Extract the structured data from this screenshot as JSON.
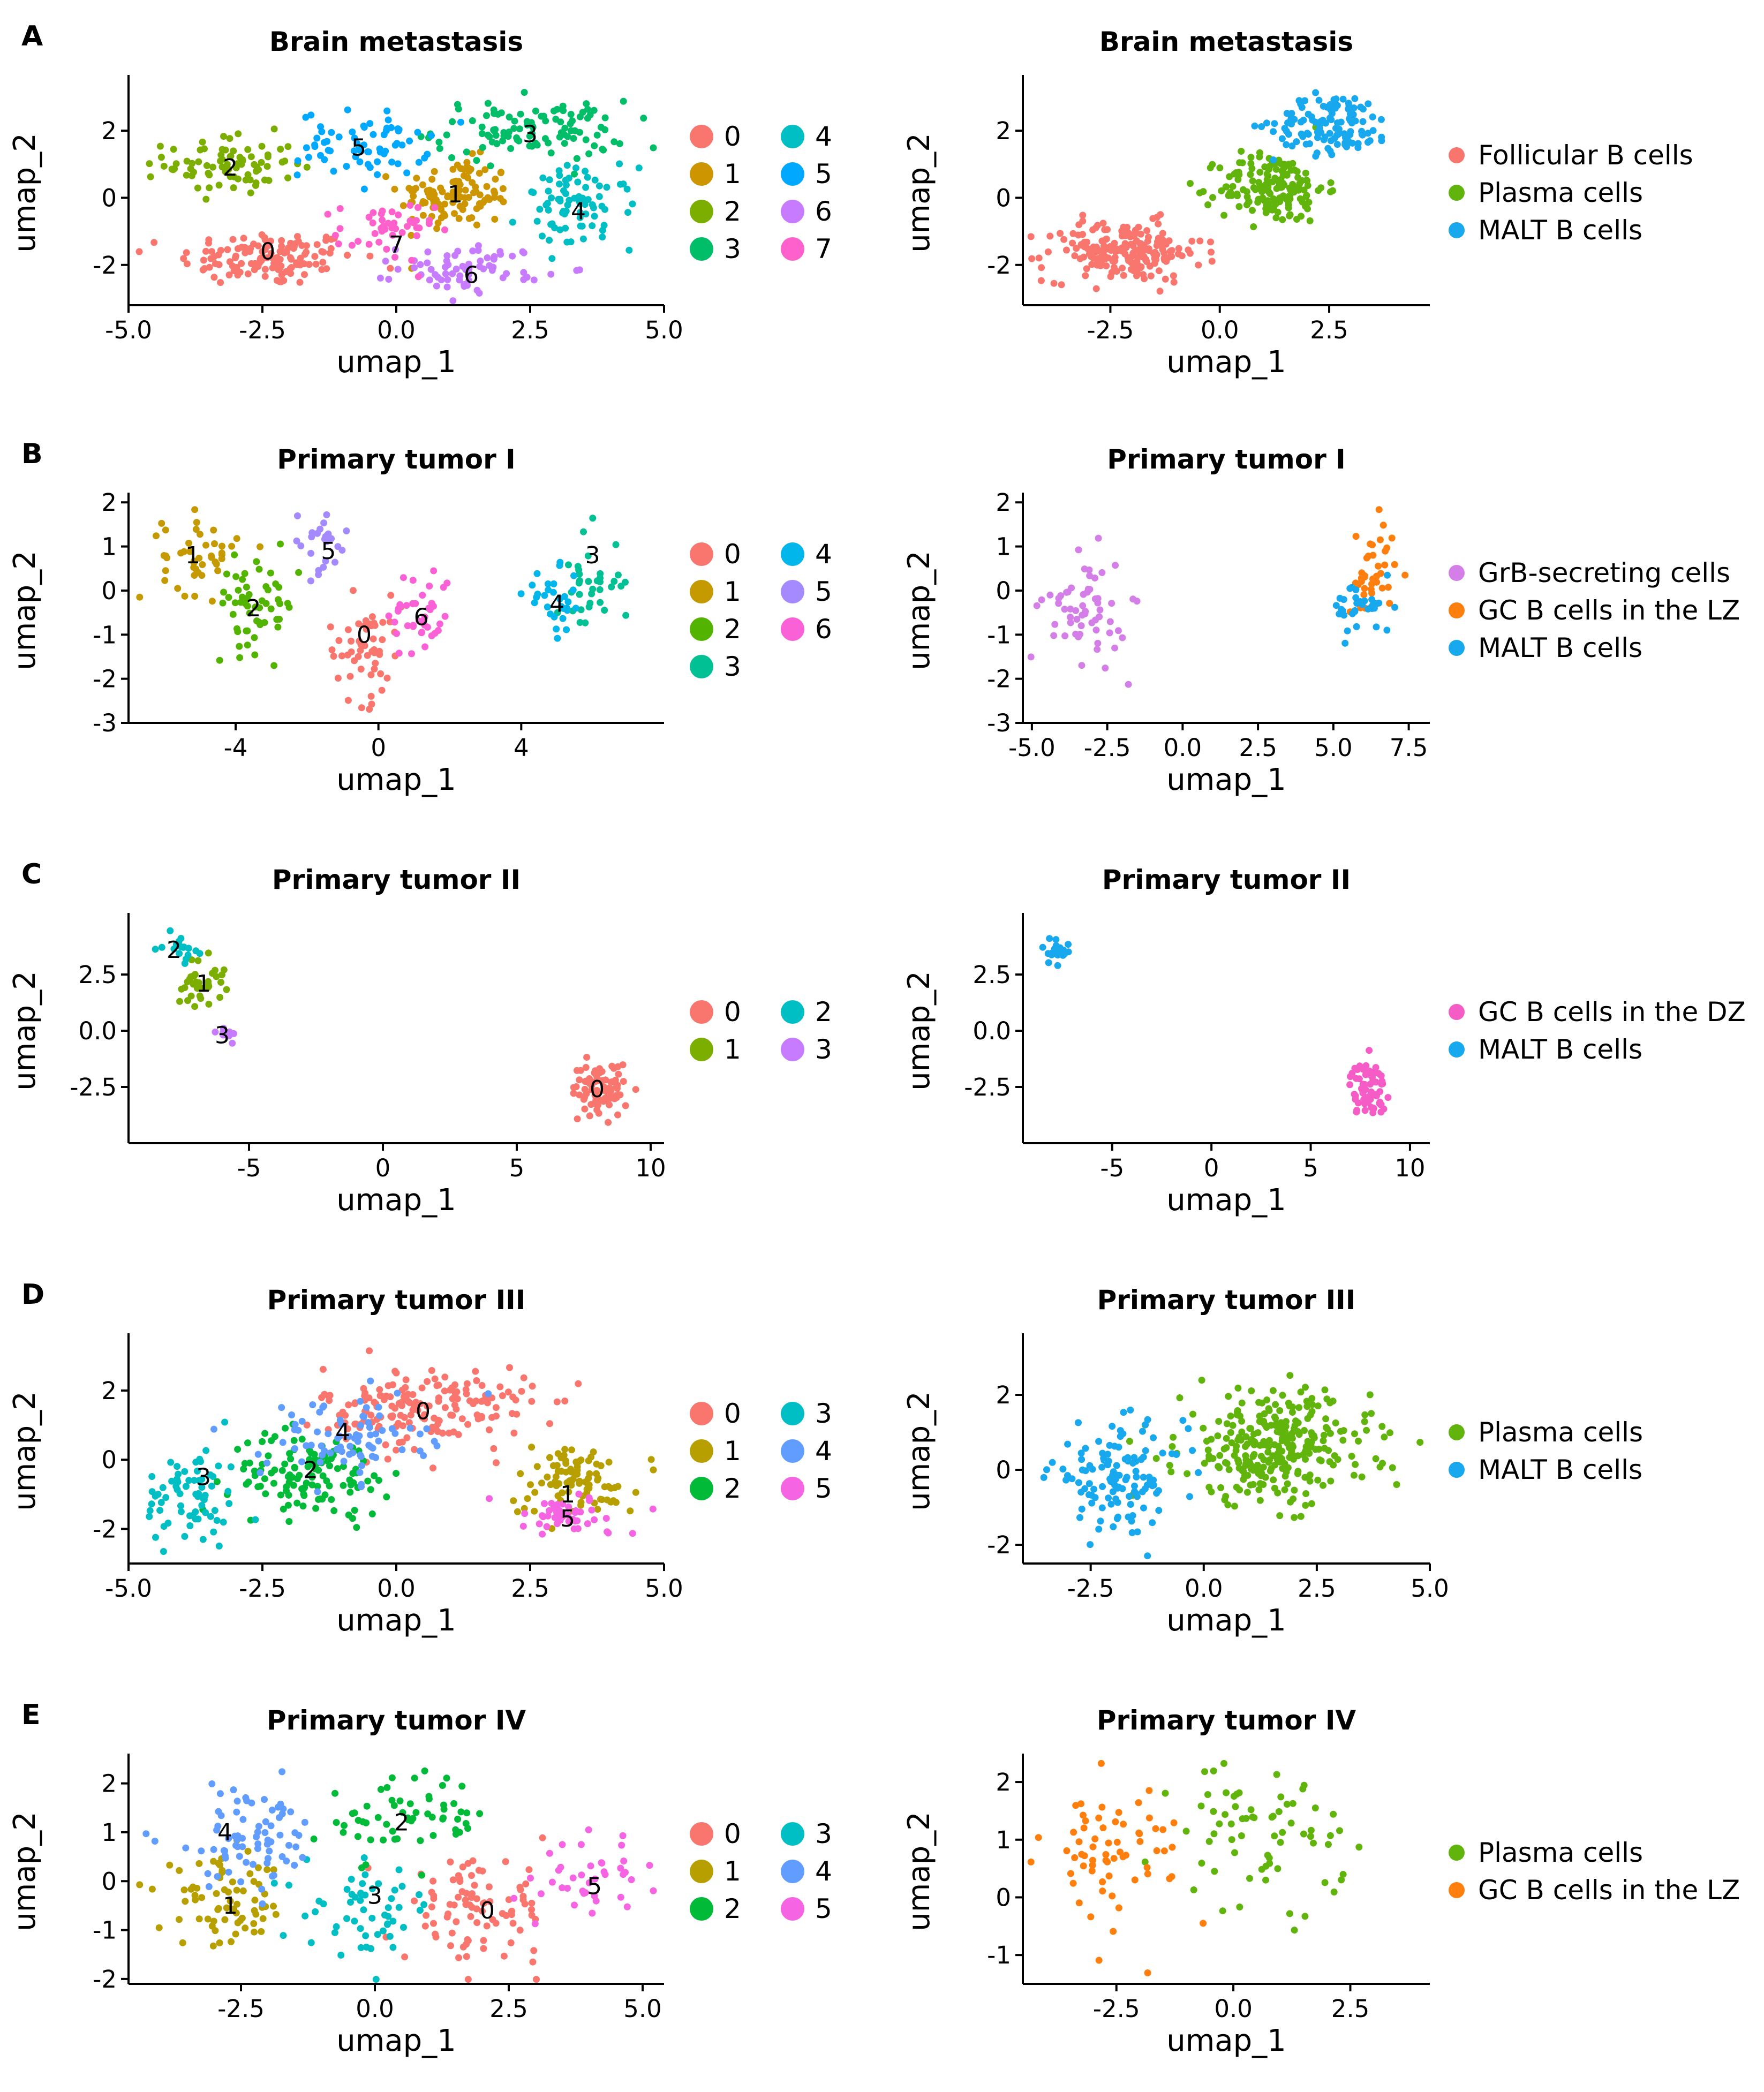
{
  "figure": {
    "rows": [
      {
        "letter": "A",
        "left_title": "Brain metastasis",
        "right_title": "Brain metastasis"
      },
      {
        "letter": "B",
        "left_title": "Primary tumor I",
        "right_title": "Primary tumor I"
      },
      {
        "letter": "C",
        "left_title": "Primary tumor II",
        "right_title": "Primary tumor II"
      },
      {
        "letter": "D",
        "left_title": "Primary tumor III",
        "right_title": "Primary tumor III"
      },
      {
        "letter": "E",
        "left_title": "Primary tumor IV",
        "right_title": "Primary tumor IV"
      }
    ],
    "xlabel": "umap_1",
    "ylabel": "umap_2"
  },
  "colors": {
    "cluster8": [
      "#F8766D",
      "#CD9600",
      "#7CAE00",
      "#00BE67",
      "#00BFC4",
      "#00A9FF",
      "#C77CFF",
      "#FF61CC"
    ],
    "cluster7": [
      "#F8766D",
      "#C49A00",
      "#53B400",
      "#00C094",
      "#00B6EB",
      "#A58AFF",
      "#FB61D7"
    ],
    "cluster4": [
      "#F8766D",
      "#7CAE00",
      "#00BFC4",
      "#C77CFF"
    ],
    "cluster6": [
      "#F8766D",
      "#B79F00",
      "#00BA38",
      "#00BFC4",
      "#619CFF",
      "#F564E3"
    ],
    "follicular": "#F8766D",
    "plasma": "#61B40C",
    "malt": "#17A8EE",
    "grb": "#D47FE8",
    "gclz": "#FF7F0E",
    "gcdz": "#F55CC6"
  },
  "chart_data": [
    {
      "id": "A-left",
      "type": "scatter",
      "title": "Brain metastasis",
      "xlabel": "umap_1",
      "ylabel": "umap_2",
      "xlim": [
        -5,
        5
      ],
      "ylim": [
        -3.2,
        3.5
      ],
      "xticks": [
        "-5.0",
        "-2.5",
        "0.0",
        "2.5",
        "5.0"
      ],
      "yticks": [
        "-2",
        "0",
        "2"
      ],
      "legend_title": "",
      "legend_layout": "two-column",
      "series": [
        {
          "name": "0",
          "color_key": "cluster8.0",
          "cx": -2.4,
          "cy": -1.8,
          "sx": 1.1,
          "sy": 0.55,
          "n": 130
        },
        {
          "name": "1",
          "color_key": "cluster8.1",
          "cx": 1.1,
          "cy": 0.1,
          "sx": 0.7,
          "sy": 0.7,
          "n": 110
        },
        {
          "name": "2",
          "color_key": "cluster8.2",
          "cx": -3.1,
          "cy": 1.0,
          "sx": 0.8,
          "sy": 0.6,
          "n": 80
        },
        {
          "name": "3",
          "color_key": "cluster8.3",
          "cx": 2.5,
          "cy": 2.0,
          "sx": 1.2,
          "sy": 0.6,
          "n": 110
        },
        {
          "name": "4",
          "color_key": "cluster8.4",
          "cx": 3.4,
          "cy": -0.3,
          "sx": 0.7,
          "sy": 0.8,
          "n": 80
        },
        {
          "name": "5",
          "color_key": "cluster8.5",
          "cx": -0.6,
          "cy": 1.6,
          "sx": 0.8,
          "sy": 0.65,
          "n": 70
        },
        {
          "name": "6",
          "color_key": "cluster8.6",
          "cx": 1.4,
          "cy": -2.1,
          "sx": 0.9,
          "sy": 0.45,
          "n": 70
        },
        {
          "name": "7",
          "color_key": "cluster8.7",
          "cx": -0.2,
          "cy": -1.0,
          "sx": 0.6,
          "sy": 0.6,
          "n": 45
        }
      ],
      "cluster_labels": [
        {
          "text": "0",
          "x": -2.4,
          "y": -1.6
        },
        {
          "text": "1",
          "x": 1.1,
          "y": 0.1
        },
        {
          "text": "2",
          "x": -3.1,
          "y": 0.9
        },
        {
          "text": "3",
          "x": 2.5,
          "y": 1.9
        },
        {
          "text": "4",
          "x": 3.4,
          "y": -0.4
        },
        {
          "text": "5",
          "x": -0.7,
          "y": 1.5
        },
        {
          "text": "6",
          "x": 1.4,
          "y": -2.3
        },
        {
          "text": "7",
          "x": 0.0,
          "y": -1.4
        }
      ]
    },
    {
      "id": "A-right",
      "type": "scatter",
      "title": "Brain metastasis",
      "xlabel": "umap_1",
      "ylabel": "umap_2",
      "xlim": [
        -4.5,
        4.8
      ],
      "ylim": [
        -3.2,
        3.5
      ],
      "xticks": [
        "-2.5",
        "0.0",
        "2.5"
      ],
      "yticks": [
        "-2",
        "0",
        "2"
      ],
      "legend_layout": "one-column",
      "series": [
        {
          "name": "Follicular B cells",
          "color_key": "follicular",
          "cx": -2.2,
          "cy": -1.6,
          "sx": 1.2,
          "sy": 0.6,
          "n": 190
        },
        {
          "name": "Plasma cells",
          "color_key": "plasma",
          "cx": 1.2,
          "cy": 0.3,
          "sx": 0.8,
          "sy": 0.7,
          "n": 170
        },
        {
          "name": "MALT B cells",
          "color_key": "malt",
          "cx": 2.6,
          "cy": 2.2,
          "sx": 0.9,
          "sy": 0.6,
          "n": 120
        }
      ],
      "cluster_labels": []
    },
    {
      "id": "B-left",
      "type": "scatter",
      "title": "Primary tumor I",
      "xlabel": "umap_1",
      "ylabel": "umap_2",
      "xlim": [
        -7,
        8
      ],
      "ylim": [
        -3,
        2.1
      ],
      "xticks": [
        "-4",
        "0",
        "4"
      ],
      "xtick_values": [
        -4,
        0,
        4
      ],
      "yticks": [
        "-3",
        "-2",
        "-1",
        "0",
        "1",
        "2"
      ],
      "legend_layout": "two-column",
      "series": [
        {
          "name": "0",
          "color_key": "cluster7.0",
          "cx": -0.4,
          "cy": -1.3,
          "sx": 0.7,
          "sy": 0.8,
          "n": 55
        },
        {
          "name": "1",
          "color_key": "cluster7.1",
          "cx": -5.0,
          "cy": 0.8,
          "sx": 0.7,
          "sy": 0.6,
          "n": 45
        },
        {
          "name": "2",
          "color_key": "cluster7.2",
          "cx": -3.4,
          "cy": -0.3,
          "sx": 0.8,
          "sy": 0.7,
          "n": 55
        },
        {
          "name": "3",
          "color_key": "cluster7.3",
          "cx": 5.9,
          "cy": 0.2,
          "sx": 0.6,
          "sy": 0.8,
          "n": 35
        },
        {
          "name": "4",
          "color_key": "cluster7.4",
          "cx": 5.0,
          "cy": -0.3,
          "sx": 0.6,
          "sy": 0.5,
          "n": 30
        },
        {
          "name": "5",
          "color_key": "cluster7.5",
          "cx": -1.7,
          "cy": 1.1,
          "sx": 0.6,
          "sy": 0.5,
          "n": 25
        },
        {
          "name": "6",
          "color_key": "cluster7.6",
          "cx": 1.2,
          "cy": -0.5,
          "sx": 0.6,
          "sy": 0.7,
          "n": 40
        }
      ],
      "cluster_labels": [
        {
          "text": "0",
          "x": -0.4,
          "y": -1.0
        },
        {
          "text": "1",
          "x": -5.2,
          "y": 0.8
        },
        {
          "text": "2",
          "x": -3.5,
          "y": -0.4
        },
        {
          "text": "3",
          "x": 6.0,
          "y": 0.8
        },
        {
          "text": "4",
          "x": 5.0,
          "y": -0.3
        },
        {
          "text": "5",
          "x": -1.4,
          "y": 0.9
        },
        {
          "text": "6",
          "x": 1.2,
          "y": -0.6
        }
      ]
    },
    {
      "id": "B-right",
      "type": "scatter",
      "title": "Primary tumor I",
      "xlabel": "umap_1",
      "ylabel": "umap_2",
      "xlim": [
        -5.3,
        8.2
      ],
      "ylim": [
        -3,
        2.1
      ],
      "xticks": [
        "-5.0",
        "-2.5",
        "0.0",
        "2.5",
        "5.0",
        "7.5"
      ],
      "yticks": [
        "-3",
        "-2",
        "-1",
        "0",
        "1",
        "2"
      ],
      "legend_layout": "one-column",
      "series": [
        {
          "name": "GrB-secreting cells",
          "color_key": "grb",
          "cx": -3.2,
          "cy": -0.4,
          "sx": 0.9,
          "sy": 0.8,
          "n": 60
        },
        {
          "name": "GC B cells in the LZ",
          "color_key": "gclz",
          "cx": 6.3,
          "cy": 0.4,
          "sx": 0.5,
          "sy": 0.8,
          "n": 40
        },
        {
          "name": "MALT B cells",
          "color_key": "malt",
          "cx": 6.0,
          "cy": -0.4,
          "sx": 0.7,
          "sy": 0.4,
          "n": 35
        }
      ],
      "cluster_labels": []
    },
    {
      "id": "C-left",
      "type": "scatter",
      "title": "Primary tumor II",
      "xlabel": "umap_1",
      "ylabel": "umap_2",
      "xlim": [
        -9.5,
        10.5
      ],
      "ylim": [
        -5,
        5
      ],
      "xticks": [
        "-5",
        "0",
        "5",
        "10"
      ],
      "yticks": [
        "-2.5",
        "0.0",
        "2.5"
      ],
      "legend_layout": "two-column",
      "series": [
        {
          "name": "0",
          "color_key": "cluster4.0",
          "cx": 8.1,
          "cy": -2.6,
          "sx": 0.7,
          "sy": 0.8,
          "n": 80
        },
        {
          "name": "1",
          "color_key": "cluster4.1",
          "cx": -6.8,
          "cy": 2.2,
          "sx": 0.6,
          "sy": 0.7,
          "n": 35
        },
        {
          "name": "2",
          "color_key": "cluster4.2",
          "cx": -7.6,
          "cy": 3.7,
          "sx": 0.4,
          "sy": 0.4,
          "n": 20
        },
        {
          "name": "3",
          "color_key": "cluster4.3",
          "cx": -5.9,
          "cy": 0.0,
          "sx": 0.25,
          "sy": 0.3,
          "n": 12
        }
      ],
      "cluster_labels": [
        {
          "text": "0",
          "x": 8.0,
          "y": -2.6
        },
        {
          "text": "1",
          "x": -6.7,
          "y": 2.1
        },
        {
          "text": "2",
          "x": -7.8,
          "y": 3.6
        },
        {
          "text": "3",
          "x": -6.0,
          "y": -0.2
        }
      ]
    },
    {
      "id": "C-right",
      "type": "scatter",
      "title": "Primary tumor II",
      "xlabel": "umap_1",
      "ylabel": "umap_2",
      "xlim": [
        -9.5,
        11
      ],
      "ylim": [
        -5,
        5
      ],
      "xticks": [
        "-5",
        "0",
        "5",
        "10"
      ],
      "yticks": [
        "-2.5",
        "0.0",
        "2.5"
      ],
      "legend_layout": "one-column",
      "series": [
        {
          "name": "GC B cells in the DZ",
          "color_key": "gcdz",
          "cx": 7.9,
          "cy": -2.6,
          "sx": 0.6,
          "sy": 0.8,
          "n": 70
        },
        {
          "name": "MALT B cells",
          "color_key": "malt",
          "cx": -7.8,
          "cy": 3.6,
          "sx": 0.5,
          "sy": 0.4,
          "n": 22
        }
      ],
      "cluster_labels": []
    },
    {
      "id": "D-left",
      "type": "scatter",
      "title": "Primary tumor III",
      "xlabel": "umap_1",
      "ylabel": "umap_2",
      "xlim": [
        -5,
        5
      ],
      "ylim": [
        -3,
        3.5
      ],
      "xticks": [
        "-5.0",
        "-2.5",
        "0.0",
        "2.5",
        "5.0"
      ],
      "yticks": [
        "-2",
        "0",
        "2"
      ],
      "legend_layout": "two-column",
      "series": [
        {
          "name": "0",
          "color_key": "cluster6.0",
          "cx": 0.6,
          "cy": 1.5,
          "sx": 1.3,
          "sy": 0.8,
          "n": 180
        },
        {
          "name": "1",
          "color_key": "cluster6.1",
          "cx": 3.3,
          "cy": -0.6,
          "sx": 0.8,
          "sy": 0.7,
          "n": 90
        },
        {
          "name": "2",
          "color_key": "cluster6.2",
          "cx": -1.6,
          "cy": -0.4,
          "sx": 1.0,
          "sy": 0.8,
          "n": 120
        },
        {
          "name": "3",
          "color_key": "cluster6.3",
          "cx": -3.8,
          "cy": -1.1,
          "sx": 0.6,
          "sy": 1.0,
          "n": 70
        },
        {
          "name": "4",
          "color_key": "cluster6.4",
          "cx": -1.0,
          "cy": 0.6,
          "sx": 1.0,
          "sy": 0.8,
          "n": 80
        },
        {
          "name": "5",
          "color_key": "cluster6.5",
          "cx": 3.2,
          "cy": -1.6,
          "sx": 0.9,
          "sy": 0.4,
          "n": 50
        }
      ],
      "cluster_labels": [
        {
          "text": "0",
          "x": 0.5,
          "y": 1.4
        },
        {
          "text": "1",
          "x": 3.2,
          "y": -1.0
        },
        {
          "text": "2",
          "x": -1.6,
          "y": -0.3
        },
        {
          "text": "3",
          "x": -3.6,
          "y": -0.5
        },
        {
          "text": "4",
          "x": -1.0,
          "y": 0.8
        },
        {
          "text": "5",
          "x": 3.2,
          "y": -1.7
        }
      ]
    },
    {
      "id": "D-right",
      "type": "scatter",
      "title": "Primary tumor III",
      "xlabel": "umap_1",
      "ylabel": "umap_2",
      "xlim": [
        -4,
        5
      ],
      "ylim": [
        -2.5,
        3.5
      ],
      "xticks": [
        "-2.5",
        "0.0",
        "2.5",
        "5.0"
      ],
      "yticks": [
        "-2",
        "0",
        "2"
      ],
      "legend_layout": "one-column",
      "series": [
        {
          "name": "Plasma cells",
          "color_key": "plasma",
          "cx": 1.6,
          "cy": 0.6,
          "sx": 1.4,
          "sy": 1.0,
          "n": 300
        },
        {
          "name": "MALT B cells",
          "color_key": "malt",
          "cx": -1.9,
          "cy": -0.2,
          "sx": 1.0,
          "sy": 0.9,
          "n": 120
        }
      ],
      "cluster_labels": []
    },
    {
      "id": "E-left",
      "type": "scatter",
      "title": "Primary tumor IV",
      "xlabel": "umap_1",
      "ylabel": "umap_2",
      "xlim": [
        -4.6,
        5.4
      ],
      "ylim": [
        -2.1,
        2.5
      ],
      "xticks": [
        "-2.5",
        "0.0",
        "2.5",
        "5.0"
      ],
      "yticks": [
        "-2",
        "-1",
        "0",
        "1",
        "2"
      ],
      "legend_layout": "two-column",
      "series": [
        {
          "name": "0",
          "color_key": "cluster6.0",
          "cx": 1.9,
          "cy": -0.6,
          "sx": 0.9,
          "sy": 0.7,
          "n": 90
        },
        {
          "name": "1",
          "color_key": "cluster6.1",
          "cx": -2.8,
          "cy": -0.5,
          "sx": 0.8,
          "sy": 0.6,
          "n": 70
        },
        {
          "name": "2",
          "color_key": "cluster6.2",
          "cx": 0.6,
          "cy": 1.3,
          "sx": 1.0,
          "sy": 0.6,
          "n": 60
        },
        {
          "name": "3",
          "color_key": "cluster6.3",
          "cx": -0.1,
          "cy": -0.6,
          "sx": 0.8,
          "sy": 0.6,
          "n": 55
        },
        {
          "name": "4",
          "color_key": "cluster6.4",
          "cx": -2.4,
          "cy": 0.9,
          "sx": 1.0,
          "sy": 0.7,
          "n": 75
        },
        {
          "name": "5",
          "color_key": "cluster6.5",
          "cx": 4.1,
          "cy": 0.0,
          "sx": 0.6,
          "sy": 0.5,
          "n": 40
        }
      ],
      "cluster_labels": [
        {
          "text": "0",
          "x": 2.1,
          "y": -0.6
        },
        {
          "text": "1",
          "x": -2.7,
          "y": -0.5
        },
        {
          "text": "2",
          "x": 0.5,
          "y": 1.2
        },
        {
          "text": "3",
          "x": 0.0,
          "y": -0.3
        },
        {
          "text": "4",
          "x": -2.8,
          "y": 1.0
        },
        {
          "text": "5",
          "x": 4.1,
          "y": -0.1
        }
      ]
    },
    {
      "id": "E-right",
      "type": "scatter",
      "title": "Primary tumor IV",
      "xlabel": "umap_1",
      "ylabel": "umap_2",
      "xlim": [
        -4.5,
        4.2
      ],
      "ylim": [
        -1.5,
        2.4
      ],
      "xticks": [
        "-2.5",
        "0.0",
        "2.5"
      ],
      "yticks": [
        "-1",
        "0",
        "1",
        "2"
      ],
      "legend_layout": "one-column",
      "series": [
        {
          "name": "Plasma cells",
          "color_key": "plasma",
          "cx": 0.6,
          "cy": 1.1,
          "sx": 1.2,
          "sy": 0.8,
          "n": 70
        },
        {
          "name": "GC B cells in the LZ",
          "color_key": "gclz",
          "cx": -2.6,
          "cy": 0.8,
          "sx": 1.0,
          "sy": 0.8,
          "n": 65
        }
      ],
      "cluster_labels": []
    }
  ]
}
